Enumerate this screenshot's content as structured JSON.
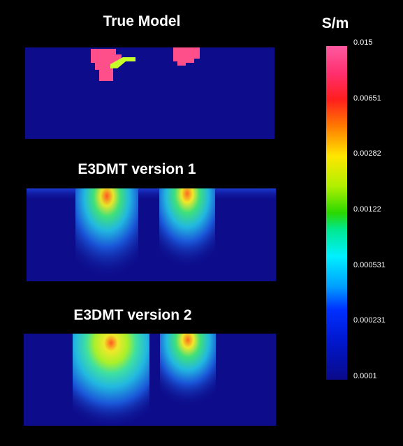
{
  "panels": [
    {
      "title": "True Model"
    },
    {
      "title": "E3DMT version 1"
    },
    {
      "title": "E3DMT version 2"
    }
  ],
  "colorbar": {
    "unit": "S/m",
    "ticks": [
      "0.015",
      "0.00651",
      "0.00282",
      "0.00122",
      "0.000531",
      "0.000231",
      "0.0001"
    ]
  },
  "colors": {
    "background": "#000000",
    "model_background": "#0d0d8c",
    "conductor": "#ff4f8a",
    "anomaly_small": "#c8ff2a"
  }
}
